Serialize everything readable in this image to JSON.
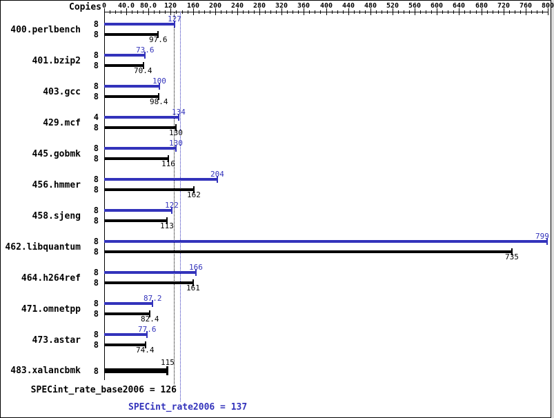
{
  "chart_data": {
    "type": "bar",
    "orientation": "horizontal",
    "title": "",
    "copies_header": "Copies",
    "axis": {
      "min": 0,
      "max": 800,
      "major_step": 40,
      "minor_step": 10,
      "position": "top",
      "major_tick_labels": [
        "0",
        "40.0",
        "80.0",
        "120",
        "160",
        "200",
        "240",
        "280",
        "320",
        "360",
        "400",
        "440",
        "480",
        "520",
        "560",
        "600",
        "640",
        "680",
        "720",
        "760",
        "800"
      ]
    },
    "series_colors": {
      "peak": "#3333bb",
      "base": "#000000"
    },
    "benchmarks": [
      {
        "name": "400.perlbench",
        "peak": {
          "copies": "8",
          "value": 127,
          "label": "127"
        },
        "base": {
          "copies": "8",
          "value": 97.6,
          "label": "97.6"
        }
      },
      {
        "name": "401.bzip2",
        "peak": {
          "copies": "8",
          "value": 73.6,
          "label": "73.6"
        },
        "base": {
          "copies": "8",
          "value": 70.4,
          "label": "70.4"
        }
      },
      {
        "name": "403.gcc",
        "peak": {
          "copies": "8",
          "value": 100,
          "label": "100"
        },
        "base": {
          "copies": "8",
          "value": 98.4,
          "label": "98.4"
        }
      },
      {
        "name": "429.mcf",
        "peak": {
          "copies": "4",
          "value": 134,
          "label": "134"
        },
        "base": {
          "copies": "8",
          "value": 130,
          "label": "130"
        }
      },
      {
        "name": "445.gobmk",
        "peak": {
          "copies": "8",
          "value": 130,
          "label": "130"
        },
        "base": {
          "copies": "8",
          "value": 116,
          "label": "116"
        }
      },
      {
        "name": "456.hmmer",
        "peak": {
          "copies": "8",
          "value": 204,
          "label": "204"
        },
        "base": {
          "copies": "8",
          "value": 162,
          "label": "162"
        }
      },
      {
        "name": "458.sjeng",
        "peak": {
          "copies": "8",
          "value": 122,
          "label": "122"
        },
        "base": {
          "copies": "8",
          "value": 113,
          "label": "113"
        }
      },
      {
        "name": "462.libquantum",
        "peak": {
          "copies": "8",
          "value": 799,
          "label": "799"
        },
        "base": {
          "copies": "8",
          "value": 735,
          "label": "735"
        }
      },
      {
        "name": "464.h264ref",
        "peak": {
          "copies": "8",
          "value": 166,
          "label": "166"
        },
        "base": {
          "copies": "8",
          "value": 161,
          "label": "161"
        }
      },
      {
        "name": "471.omnetpp",
        "peak": {
          "copies": "8",
          "value": 87.2,
          "label": "87.2"
        },
        "base": {
          "copies": "8",
          "value": 82.4,
          "label": "82.4"
        }
      },
      {
        "name": "473.astar",
        "peak": {
          "copies": "8",
          "value": 77.6,
          "label": "77.6"
        },
        "base": {
          "copies": "8",
          "value": 74.4,
          "label": "74.4"
        }
      },
      {
        "name": "483.xalancbmk",
        "peak": null,
        "label_above": true,
        "base": {
          "copies": "8",
          "value": 115,
          "label": "115",
          "bold": true
        }
      }
    ],
    "reference_lines": [
      {
        "label": "SPECint_rate_base2006 = 126",
        "value": 126,
        "color": "#000000"
      },
      {
        "label": "SPECint_rate2006 = 137",
        "value": 137,
        "color": "#3333bb"
      }
    ]
  }
}
